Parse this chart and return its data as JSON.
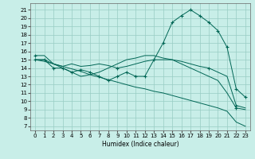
{
  "xlabel": "Humidex (Indice chaleur)",
  "background_color": "#c8eee8",
  "grid_color": "#98ccc4",
  "line_color": "#006655",
  "xlim": [
    -0.5,
    23.5
  ],
  "ylim": [
    6.5,
    21.8
  ],
  "yticks": [
    7,
    8,
    9,
    10,
    11,
    12,
    13,
    14,
    15,
    16,
    17,
    18,
    19,
    20,
    21
  ],
  "xticks": [
    0,
    1,
    2,
    3,
    4,
    5,
    6,
    7,
    8,
    9,
    10,
    11,
    12,
    13,
    14,
    15,
    16,
    17,
    18,
    19,
    20,
    21,
    22,
    23
  ],
  "curve1_x": [
    0,
    1,
    2,
    3,
    4,
    5,
    6,
    7,
    8,
    9,
    10,
    11,
    12,
    13,
    14,
    15,
    16,
    17,
    18,
    19,
    20,
    21,
    22,
    23
  ],
  "curve1_y": [
    15.0,
    15.0,
    14.0,
    14.0,
    13.5,
    13.8,
    13.5,
    13.0,
    12.5,
    13.0,
    13.5,
    13.0,
    13.0,
    15.0,
    17.0,
    19.5,
    20.3,
    21.0,
    20.3,
    19.5,
    18.5,
    16.5,
    11.5,
    10.5
  ],
  "curve1_markers_x": [
    0,
    1,
    2,
    3,
    4,
    5,
    6,
    7,
    8,
    9,
    10,
    11,
    12,
    13,
    14,
    15,
    16,
    17,
    18,
    19,
    20,
    21,
    22,
    23
  ],
  "curve1_markers_y": [
    15.0,
    15.0,
    14.0,
    14.0,
    13.5,
    13.8,
    13.5,
    13.0,
    12.5,
    13.0,
    13.5,
    13.0,
    13.0,
    15.0,
    17.0,
    19.5,
    20.3,
    21.0,
    20.3,
    19.5,
    18.5,
    16.5,
    11.5,
    10.5
  ],
  "curve2_x": [
    0,
    1,
    2,
    3,
    4,
    5,
    6,
    7,
    8,
    9,
    10,
    11,
    12,
    13,
    14,
    15,
    16,
    17,
    18,
    19,
    20,
    21,
    22,
    23
  ],
  "curve2_y": [
    15.0,
    15.0,
    14.5,
    14.2,
    14.5,
    14.2,
    14.3,
    14.5,
    14.3,
    14.0,
    14.2,
    14.5,
    14.8,
    15.0,
    15.0,
    15.0,
    14.8,
    14.5,
    14.2,
    14.0,
    13.5,
    13.0,
    9.5,
    9.2
  ],
  "curve2_marker_idx": [
    9,
    19,
    22
  ],
  "curve3_x": [
    0,
    1,
    2,
    3,
    4,
    5,
    6,
    7,
    8,
    9,
    10,
    11,
    12,
    13,
    14,
    15,
    16,
    17,
    18,
    19,
    20,
    21,
    22,
    23
  ],
  "curve3_y": [
    15.5,
    15.5,
    14.5,
    14.0,
    13.5,
    13.0,
    13.2,
    13.5,
    14.0,
    14.5,
    15.0,
    15.2,
    15.5,
    15.5,
    15.2,
    15.0,
    14.5,
    14.0,
    13.5,
    13.0,
    12.5,
    11.0,
    9.2,
    9.0
  ],
  "curve3_marker_idx": [
    0,
    22
  ],
  "curve4_x": [
    0,
    1,
    2,
    3,
    4,
    5,
    6,
    7,
    8,
    9,
    10,
    11,
    12,
    13,
    14,
    15,
    16,
    17,
    18,
    19,
    20,
    21,
    22,
    23
  ],
  "curve4_y": [
    15.0,
    14.8,
    14.5,
    14.2,
    13.9,
    13.6,
    13.2,
    12.9,
    12.6,
    12.3,
    12.0,
    11.7,
    11.5,
    11.2,
    11.0,
    10.7,
    10.4,
    10.1,
    9.8,
    9.5,
    9.2,
    8.8,
    7.5,
    7.0
  ],
  "lw": 0.7,
  "ms": 1.8,
  "tick_fontsize": 5.0,
  "xlabel_fontsize": 5.5
}
